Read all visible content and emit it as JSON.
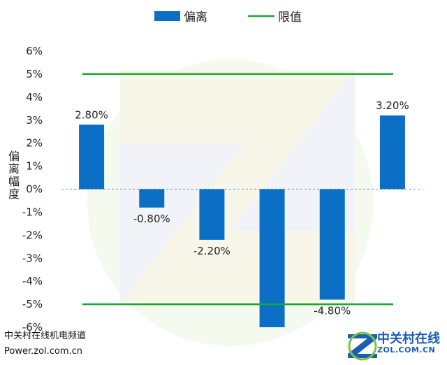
{
  "chart_data": {
    "type": "bar",
    "categories": [
      "",
      "",
      "",
      "",
      "",
      ""
    ],
    "values": [
      2.8,
      -0.8,
      -2.2,
      -6.0,
      -4.8,
      3.2
    ],
    "data_labels": [
      "2.80%",
      "-0.80%",
      "-2.20%",
      "",
      "-4.80%",
      "3.20%"
    ],
    "limit_lines": [
      5,
      -5
    ],
    "ylim": [
      -6,
      6
    ],
    "yticks": [
      "6%",
      "5%",
      "4%",
      "3%",
      "2%",
      "1%",
      "0%",
      "-1%",
      "-2%",
      "-3%",
      "-4%",
      "-5%",
      "-6%"
    ],
    "ylabel": "偏离幅度",
    "xlabel": "",
    "title": "",
    "grid": false,
    "legend": {
      "position": "top",
      "entries": [
        {
          "label": "偏离",
          "kind": "bar"
        },
        {
          "label": "限值",
          "kind": "line"
        }
      ]
    },
    "colors": {
      "bar": "#0b6fc6",
      "limit": "#1aa637",
      "zero_line": "#5b8fc9"
    }
  },
  "watermark": {
    "left_line1": "中关村在线机电频道",
    "left_line2": "Power.zol.com.cn",
    "right_cn": "中关村在线",
    "right_en": "ZOL.COM.CN",
    "logo_letter": "Z"
  }
}
